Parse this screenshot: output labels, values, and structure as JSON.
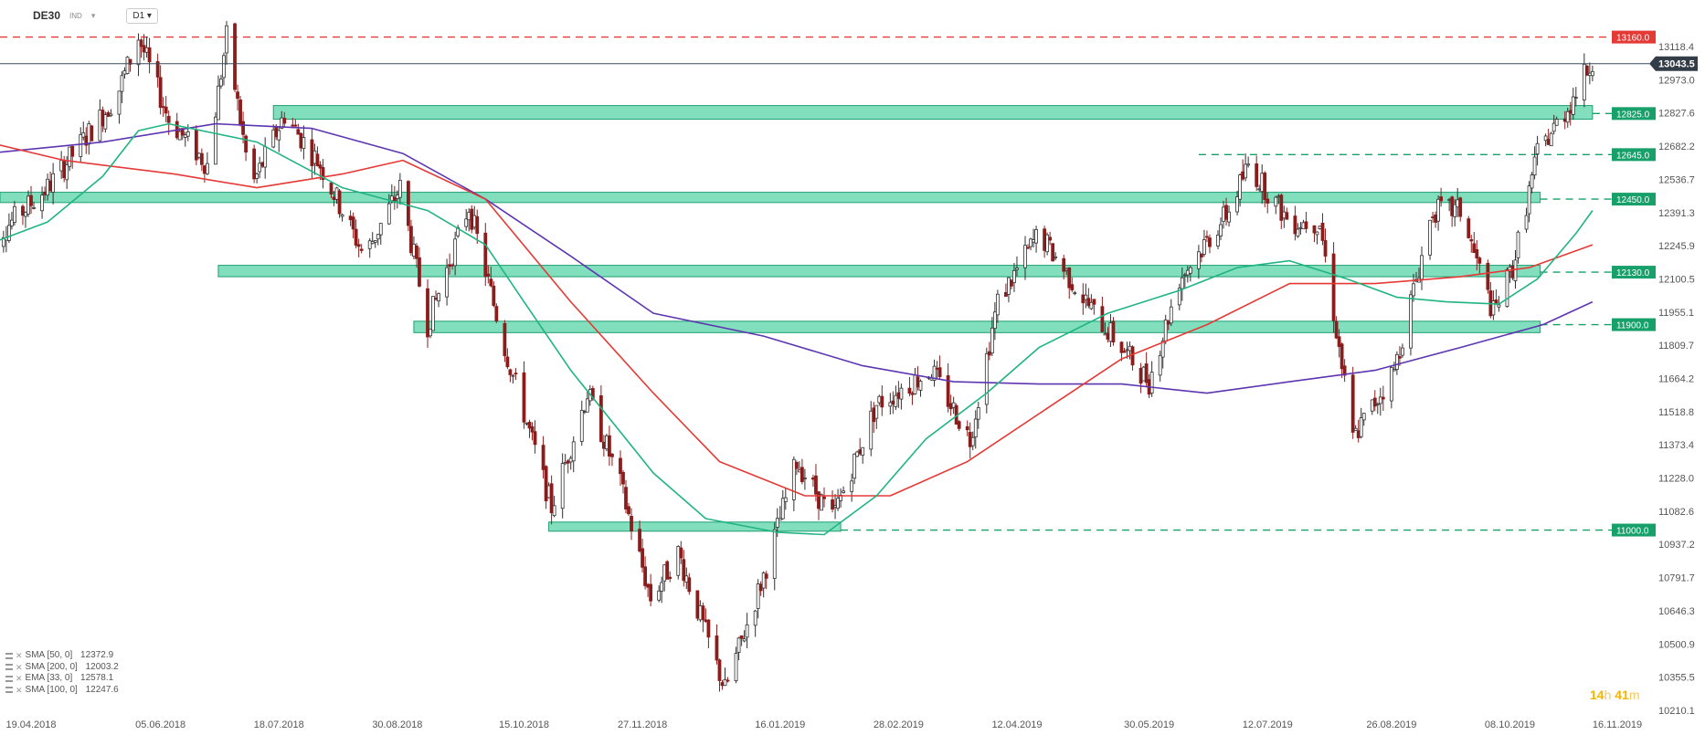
{
  "header": {
    "symbol": "DE30",
    "exchange": "IND",
    "timeframe": "D1"
  },
  "indicators": [
    {
      "label": "SMA [50, 0]",
      "value": "12372.9"
    },
    {
      "label": "SMA [200, 0]",
      "value": "12003.2"
    },
    {
      "label": "EMA [33, 0]",
      "value": "12578.1"
    },
    {
      "label": "SMA [100, 0]",
      "value": "12247.6"
    }
  ],
  "countdown": {
    "hours": "14",
    "h_unit": "h",
    "minutes": "41",
    "m_unit": "m"
  },
  "colors": {
    "up_candle": "#2e2e2e",
    "down_candle": "#8b1d1d",
    "ema33": "#1fb482",
    "sma50": "#e53935",
    "sma200": "#5e35b1",
    "zone_fill": "#4dd2a2",
    "zone_border": "#1e9f74",
    "resistance_red": "#e53935",
    "current_price_bg": "#333d47",
    "level_label_green": "#18a06b",
    "level_label_red": "#e53935"
  },
  "chart_data": {
    "type": "candlestick",
    "symbol": "DE30",
    "timeframe": "D1",
    "x_range": [
      "2018-04-03",
      "2019-11-30"
    ],
    "ylim": [
      10210,
      13230
    ],
    "x_tick_labels": [
      "19.04.2018",
      "05.06.2018",
      "18.07.2018",
      "30.08.2018",
      "15.10.2018",
      "27.11.2018",
      "16.01.2019",
      "28.02.2019",
      "12.04.2019",
      "30.05.2019",
      "12.07.2019",
      "26.08.2019",
      "08.10.2019",
      "16.11.2019"
    ],
    "y_tick_labels": [
      "13118.4",
      "12973.0",
      "12827.6",
      "12682.2",
      "12536.7",
      "12391.3",
      "12245.9",
      "12100.5",
      "11955.1",
      "11809.7",
      "11664.2",
      "11518.8",
      "11373.4",
      "11228.0",
      "11082.6",
      "10937.2",
      "10791.7",
      "10646.3",
      "10500.9",
      "10355.5",
      "10210.1"
    ],
    "current_price": {
      "label": "13043.5",
      "value": 13043.5
    },
    "levels": [
      {
        "label": "13160.0",
        "value": 13160,
        "color": "red",
        "style": "dashed"
      },
      {
        "label": "12825.0",
        "value": 12825,
        "color": "green",
        "style": "dashed"
      },
      {
        "label": "12645.0",
        "value": 12645,
        "color": "green",
        "style": "dashed"
      },
      {
        "label": "12450.0",
        "value": 12450,
        "color": "green",
        "style": "dashed"
      },
      {
        "label": "12130.0",
        "value": 12130,
        "color": "green",
        "style": "dashed"
      },
      {
        "label": "11900.0",
        "value": 11900,
        "color": "green",
        "style": "dashed"
      },
      {
        "label": "11000.0",
        "value": 11000,
        "color": "green",
        "style": "dashed"
      }
    ],
    "zones": [
      {
        "from": "2018-07-16",
        "to": "2019-11-07",
        "low": 12800,
        "high": 12860
      },
      {
        "from": "2018-04-03",
        "to": "2019-10-19",
        "low": 12435,
        "high": 12480
      },
      {
        "from": "2018-06-26",
        "to": "2019-10-19",
        "low": 12110,
        "high": 12160
      },
      {
        "from": "2018-09-05",
        "to": "2019-10-19",
        "low": 11865,
        "high": 11915
      },
      {
        "from": "2018-10-24",
        "to": "2019-02-07",
        "low": 10995,
        "high": 11035
      }
    ],
    "price_path": [
      [
        "2018-04-03",
        12250
      ],
      [
        "2018-04-25",
        12500
      ],
      [
        "2018-05-20",
        12900
      ],
      [
        "2018-05-28",
        13160
      ],
      [
        "2018-06-08",
        12800
      ],
      [
        "2018-06-22",
        12600
      ],
      [
        "2018-06-29",
        13160
      ],
      [
        "2018-07-08",
        12500
      ],
      [
        "2018-07-20",
        12820
      ],
      [
        "2018-08-02",
        12600
      ],
      [
        "2018-08-18",
        12200
      ],
      [
        "2018-08-31",
        12500
      ],
      [
        "2018-09-10",
        11900
      ],
      [
        "2018-09-25",
        12420
      ],
      [
        "2018-10-08",
        11800
      ],
      [
        "2018-10-25",
        11100
      ],
      [
        "2018-11-07",
        11600
      ],
      [
        "2018-11-19",
        11200
      ],
      [
        "2018-11-30",
        10700
      ],
      [
        "2018-12-10",
        10900
      ],
      [
        "2018-12-27",
        10300
      ],
      [
        "2019-01-10",
        10800
      ],
      [
        "2019-01-22",
        11300
      ],
      [
        "2019-02-04",
        11050
      ],
      [
        "2019-02-20",
        11550
      ],
      [
        "2019-03-12",
        11700
      ],
      [
        "2019-03-26",
        11400
      ],
      [
        "2019-04-05",
        12000
      ],
      [
        "2019-04-20",
        12300
      ],
      [
        "2019-05-10",
        11950
      ],
      [
        "2019-05-30",
        11650
      ],
      [
        "2019-06-10",
        12100
      ],
      [
        "2019-06-28",
        12400
      ],
      [
        "2019-07-05",
        12600
      ],
      [
        "2019-07-20",
        12350
      ],
      [
        "2019-07-31",
        12350
      ],
      [
        "2019-08-12",
        11400
      ],
      [
        "2019-08-27",
        11700
      ],
      [
        "2019-09-10",
        12400
      ],
      [
        "2019-09-20",
        12400
      ],
      [
        "2019-10-02",
        11950
      ],
      [
        "2019-10-09",
        12150
      ],
      [
        "2019-10-18",
        12650
      ],
      [
        "2019-10-29",
        12850
      ],
      [
        "2019-11-07",
        13060
      ]
    ],
    "ema33": [
      [
        "2018-04-03",
        12250
      ],
      [
        "2018-04-25",
        12350
      ],
      [
        "2018-05-15",
        12550
      ],
      [
        "2018-05-28",
        12750
      ],
      [
        "2018-06-08",
        12780
      ],
      [
        "2018-07-10",
        12700
      ],
      [
        "2018-08-10",
        12500
      ],
      [
        "2018-09-10",
        12400
      ],
      [
        "2018-10-01",
        12250
      ],
      [
        "2018-10-15",
        12000
      ],
      [
        "2018-11-01",
        11700
      ],
      [
        "2018-12-01",
        11250
      ],
      [
        "2018-12-20",
        11050
      ],
      [
        "2019-01-15",
        10990
      ],
      [
        "2019-02-01",
        10980
      ],
      [
        "2019-02-20",
        11150
      ],
      [
        "2019-03-10",
        11400
      ],
      [
        "2019-04-01",
        11600
      ],
      [
        "2019-04-20",
        11800
      ],
      [
        "2019-05-15",
        11950
      ],
      [
        "2019-06-10",
        12050
      ],
      [
        "2019-07-01",
        12150
      ],
      [
        "2019-07-20",
        12180
      ],
      [
        "2019-08-10",
        12100
      ],
      [
        "2019-08-28",
        12020
      ],
      [
        "2019-09-15",
        12000
      ],
      [
        "2019-10-04",
        11990
      ],
      [
        "2019-10-18",
        12100
      ],
      [
        "2019-11-01",
        12300
      ],
      [
        "2019-11-07",
        12400
      ]
    ],
    "sma50": [
      [
        "2018-04-03",
        12700
      ],
      [
        "2018-05-01",
        12620
      ],
      [
        "2018-06-10",
        12560
      ],
      [
        "2018-07-10",
        12500
      ],
      [
        "2018-08-10",
        12560
      ],
      [
        "2018-09-01",
        12620
      ],
      [
        "2018-10-01",
        12450
      ],
      [
        "2018-11-01",
        12000
      ],
      [
        "2018-12-01",
        11600
      ],
      [
        "2018-12-25",
        11300
      ],
      [
        "2019-01-25",
        11150
      ],
      [
        "2019-02-25",
        11150
      ],
      [
        "2019-03-25",
        11300
      ],
      [
        "2019-04-25",
        11550
      ],
      [
        "2019-05-20",
        11750
      ],
      [
        "2019-06-20",
        11900
      ],
      [
        "2019-07-20",
        12080
      ],
      [
        "2019-08-20",
        12080
      ],
      [
        "2019-09-20",
        12110
      ],
      [
        "2019-10-15",
        12150
      ],
      [
        "2019-11-07",
        12250
      ]
    ],
    "sma200": [
      [
        "2018-04-03",
        12650
      ],
      [
        "2018-05-15",
        12700
      ],
      [
        "2018-06-25",
        12780
      ],
      [
        "2018-07-30",
        12760
      ],
      [
        "2018-09-01",
        12650
      ],
      [
        "2018-10-01",
        12450
      ],
      [
        "2018-11-01",
        12200
      ],
      [
        "2018-12-01",
        11950
      ],
      [
        "2019-01-10",
        11850
      ],
      [
        "2019-02-15",
        11720
      ],
      [
        "2019-03-20",
        11650
      ],
      [
        "2019-04-20",
        11640
      ],
      [
        "2019-05-20",
        11640
      ],
      [
        "2019-06-20",
        11600
      ],
      [
        "2019-07-20",
        11650
      ],
      [
        "2019-08-20",
        11700
      ],
      [
        "2019-09-20",
        11800
      ],
      [
        "2019-10-20",
        11900
      ],
      [
        "2019-11-07",
        12000
      ]
    ]
  }
}
